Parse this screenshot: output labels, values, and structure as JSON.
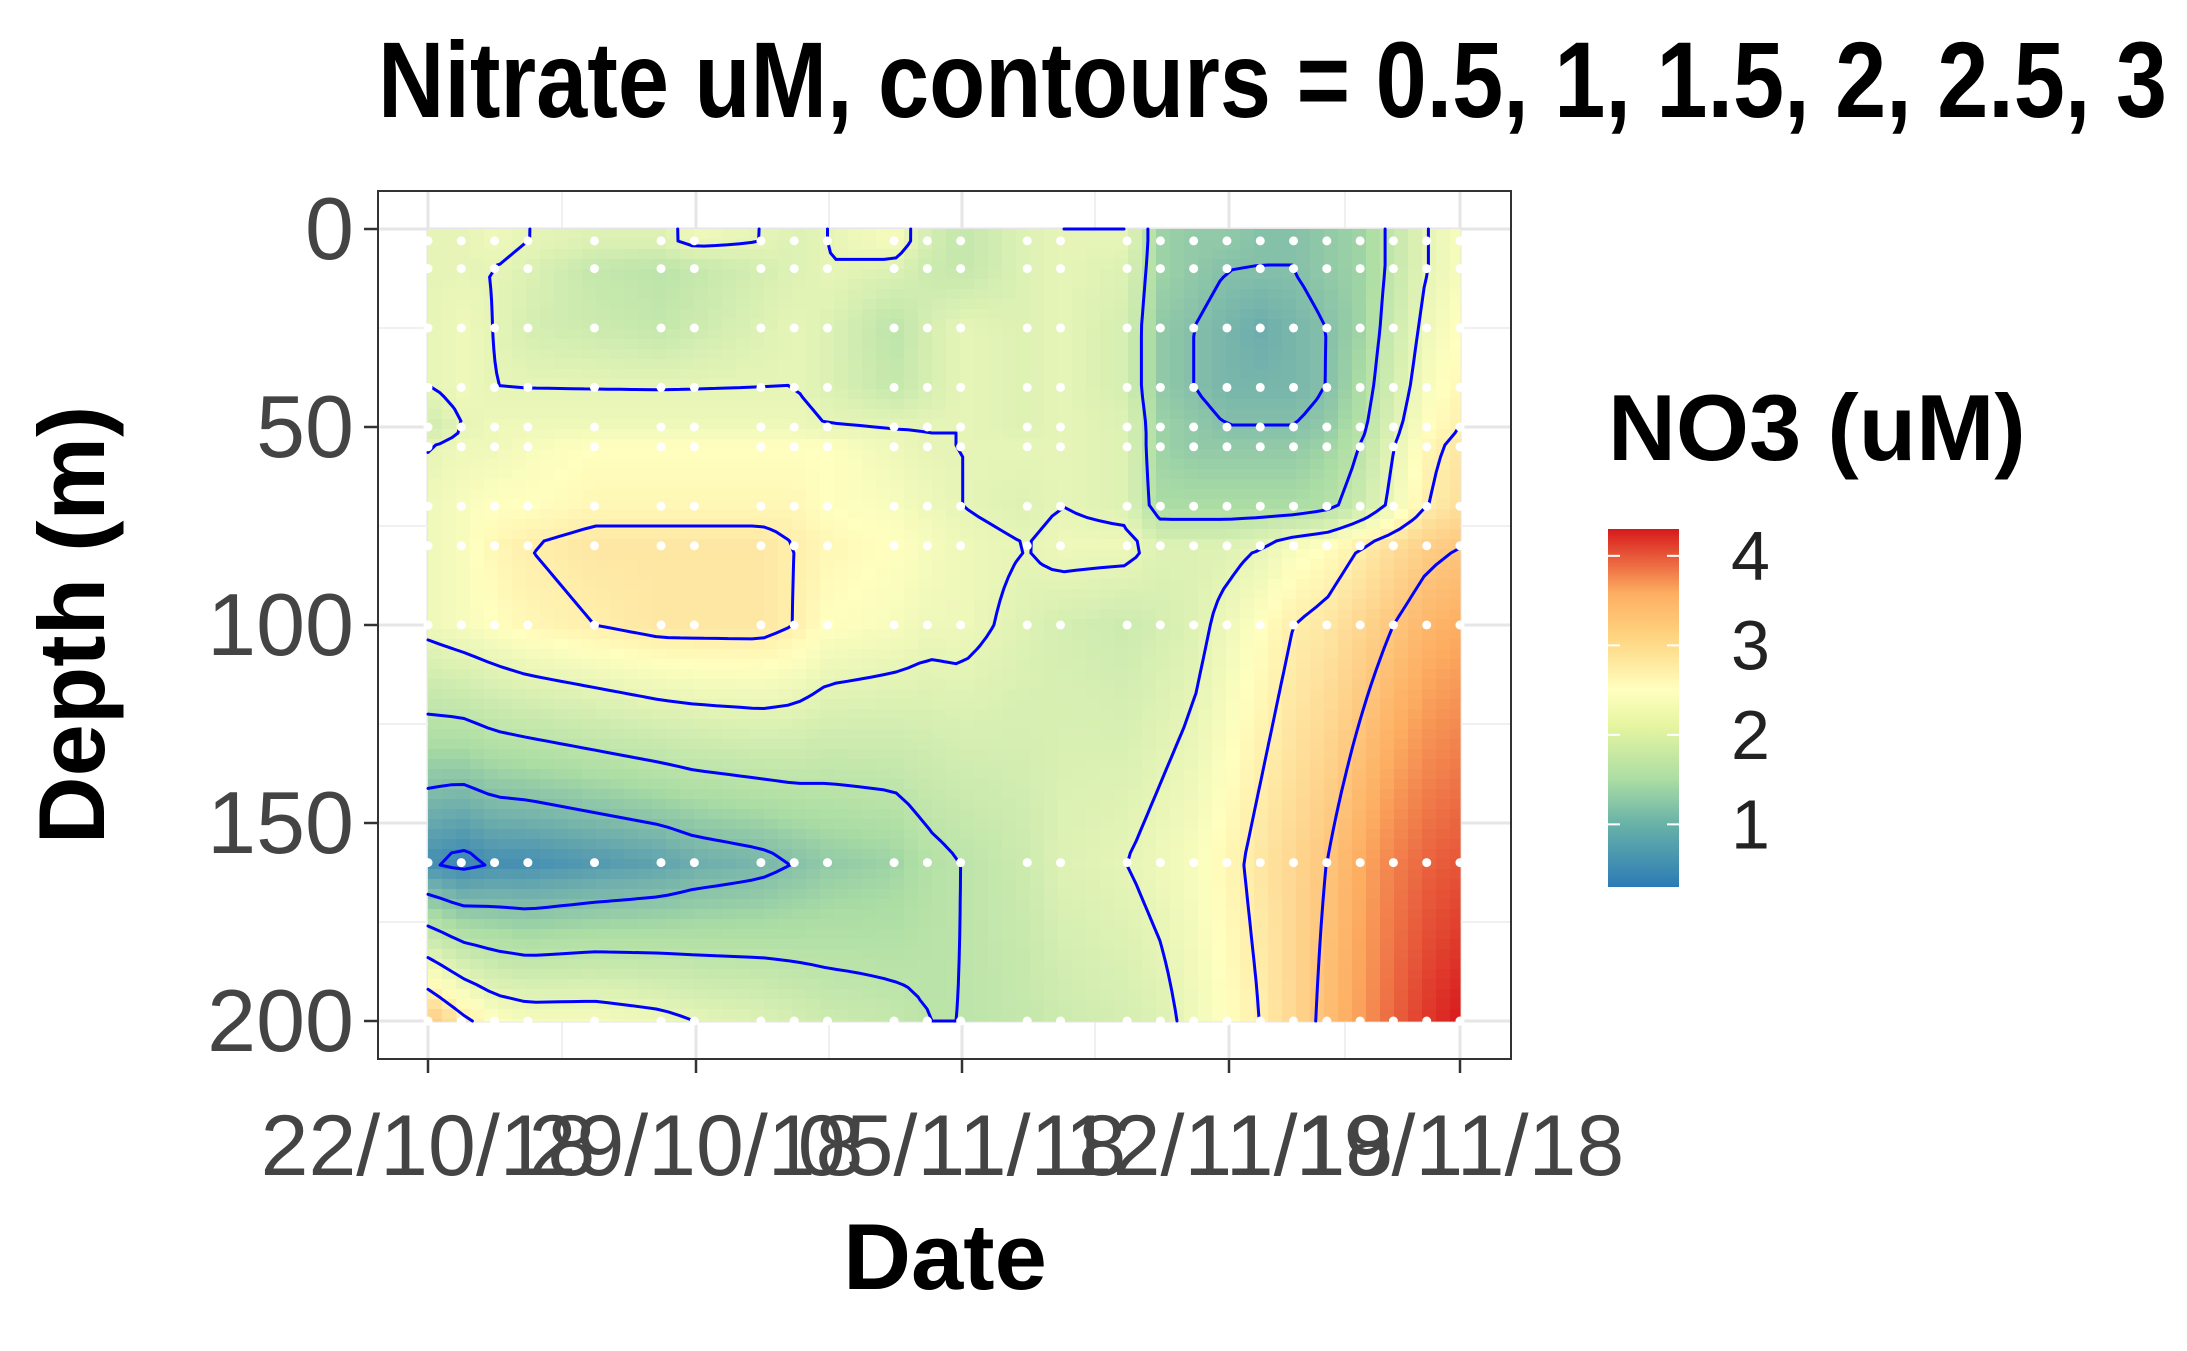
{
  "chart_data": {
    "type": "heatmap",
    "title": "Nitrate uM, contours = 0.5, 1, 1.5, 2, 2.5, 3",
    "xlabel": "Date",
    "ylabel": "Depth (m)",
    "x_tick_labels": [
      "22/10/18",
      "29/10/18",
      "05/11/18",
      "12/11/18",
      "19/11/18",
      "22/11/18"
    ],
    "y_ticks": [
      0,
      50,
      100,
      150,
      200
    ],
    "y_tick_labels": [
      "0",
      "50",
      "100",
      "150",
      "200"
    ],
    "ylim": [
      0,
      200
    ],
    "y_reversed": true,
    "grid": true,
    "contour_levels": [
      0.5,
      1,
      1.5,
      2,
      2.5,
      3
    ],
    "contour_color": "#0000ff",
    "legend": {
      "title": "NO3 (uM)",
      "placement": "right",
      "range": [
        0.3,
        4.3
      ],
      "ticks": [
        1,
        2,
        3,
        4
      ],
      "tick_labels": [
        "1",
        "2",
        "3",
        "4"
      ],
      "colors": [
        "#2c7bb6",
        "#abdda4",
        "#ffffbf",
        "#fdae61",
        "#d7191c"
      ]
    },
    "sample_depths": [
      3,
      10,
      25,
      40,
      50,
      55,
      70,
      80,
      100,
      160,
      200
    ],
    "sample_dates": [
      "22/10/18",
      "23/10/18",
      "24/10/18",
      "25/10/18",
      "27/10/18",
      "29/10/18",
      "30/10/18",
      "01/11/18",
      "02/11/18",
      "03/11/18",
      "05/11/18",
      "06/11/18",
      "07/11/18",
      "09/11/18",
      "10/11/18",
      "12/11/18",
      "13/11/18",
      "14/11/18",
      "15/11/18",
      "16/11/18",
      "17/11/18",
      "18/11/18",
      "19/11/18",
      "20/11/18",
      "21/11/18",
      "22/11/18"
    ],
    "nitrate_uM": [
      [
        2.0,
        2.0,
        2.1,
        2.0,
        1.9,
        1.9,
        2.1,
        2.0,
        1.9,
        2.0,
        2.2,
        1.8,
        1.6,
        1.9,
        2.0,
        2.0,
        1.2,
        1.1,
        1.1,
        1.0,
        1.0,
        1.1,
        1.2,
        1.6,
        2.0,
        2.2
      ],
      [
        2.0,
        2.0,
        2.0,
        1.9,
        1.6,
        1.5,
        1.6,
        1.8,
        1.9,
        2.0,
        1.9,
        1.7,
        1.6,
        1.9,
        2.0,
        1.9,
        1.2,
        1.1,
        1.0,
        1.0,
        1.0,
        1.1,
        1.2,
        1.6,
        2.0,
        2.2
      ],
      [
        2.0,
        2.1,
        2.0,
        1.8,
        1.7,
        1.6,
        1.7,
        1.9,
        2.0,
        1.9,
        1.5,
        1.8,
        2.0,
        1.9,
        2.0,
        1.8,
        1.1,
        1.0,
        0.9,
        0.8,
        0.9,
        1.0,
        1.2,
        1.7,
        2.1,
        2.3
      ],
      [
        2.0,
        2.1,
        2.0,
        2.0,
        2.0,
        2.0,
        2.0,
        2.0,
        2.0,
        1.9,
        1.6,
        1.8,
        2.0,
        1.9,
        2.0,
        1.8,
        1.1,
        1.0,
        0.9,
        0.9,
        0.9,
        1.0,
        1.3,
        1.8,
        2.2,
        2.4
      ],
      [
        1.7,
        2.0,
        2.1,
        2.1,
        2.1,
        2.1,
        2.1,
        2.1,
        2.1,
        2.0,
        2.0,
        2.0,
        2.0,
        1.9,
        2.0,
        1.9,
        1.2,
        1.1,
        1.0,
        1.0,
        1.0,
        1.1,
        1.4,
        1.9,
        2.3,
        2.5
      ],
      [
        2.0,
        2.1,
        2.1,
        2.2,
        2.3,
        2.3,
        2.3,
        2.3,
        2.3,
        2.3,
        2.1,
        2.0,
        2.0,
        2.0,
        2.0,
        1.9,
        1.2,
        1.1,
        1.1,
        1.1,
        1.1,
        1.2,
        1.5,
        2.0,
        2.4,
        2.6
      ],
      [
        2.1,
        2.2,
        2.3,
        2.3,
        2.4,
        2.4,
        2.4,
        2.4,
        2.4,
        2.3,
        2.2,
        2.1,
        2.0,
        1.9,
        2.0,
        1.9,
        1.3,
        1.3,
        1.3,
        1.3,
        1.3,
        1.4,
        1.7,
        2.1,
        2.5,
        2.7
      ],
      [
        2.1,
        2.2,
        2.4,
        2.5,
        2.6,
        2.6,
        2.6,
        2.6,
        2.5,
        2.4,
        2.3,
        2.2,
        2.1,
        2.0,
        2.1,
        2.1,
        1.9,
        1.9,
        1.9,
        2.0,
        2.2,
        2.3,
        2.5,
        2.7,
        2.9,
        3.0
      ],
      [
        2.1,
        2.2,
        2.3,
        2.4,
        2.5,
        2.6,
        2.6,
        2.6,
        2.5,
        2.3,
        2.2,
        2.1,
        2.1,
        1.9,
        1.8,
        1.7,
        1.8,
        1.9,
        2.1,
        2.3,
        2.5,
        2.6,
        2.8,
        3.0,
        3.2,
        3.3
      ],
      [
        0.5,
        0.4,
        0.5,
        0.5,
        0.6,
        0.7,
        0.8,
        0.9,
        1.0,
        1.1,
        1.2,
        1.4,
        1.5,
        1.7,
        1.9,
        2.0,
        2.1,
        2.2,
        2.4,
        2.6,
        2.8,
        3.0,
        3.3,
        3.6,
        3.8,
        3.9
      ],
      [
        3.0,
        2.6,
        2.3,
        2.2,
        2.2,
        2.1,
        2.0,
        1.9,
        1.8,
        1.7,
        1.6,
        1.5,
        1.5,
        1.6,
        1.7,
        1.8,
        1.9,
        2.1,
        2.3,
        2.5,
        2.8,
        3.1,
        3.4,
        3.8,
        4.1,
        4.3
      ]
    ]
  }
}
